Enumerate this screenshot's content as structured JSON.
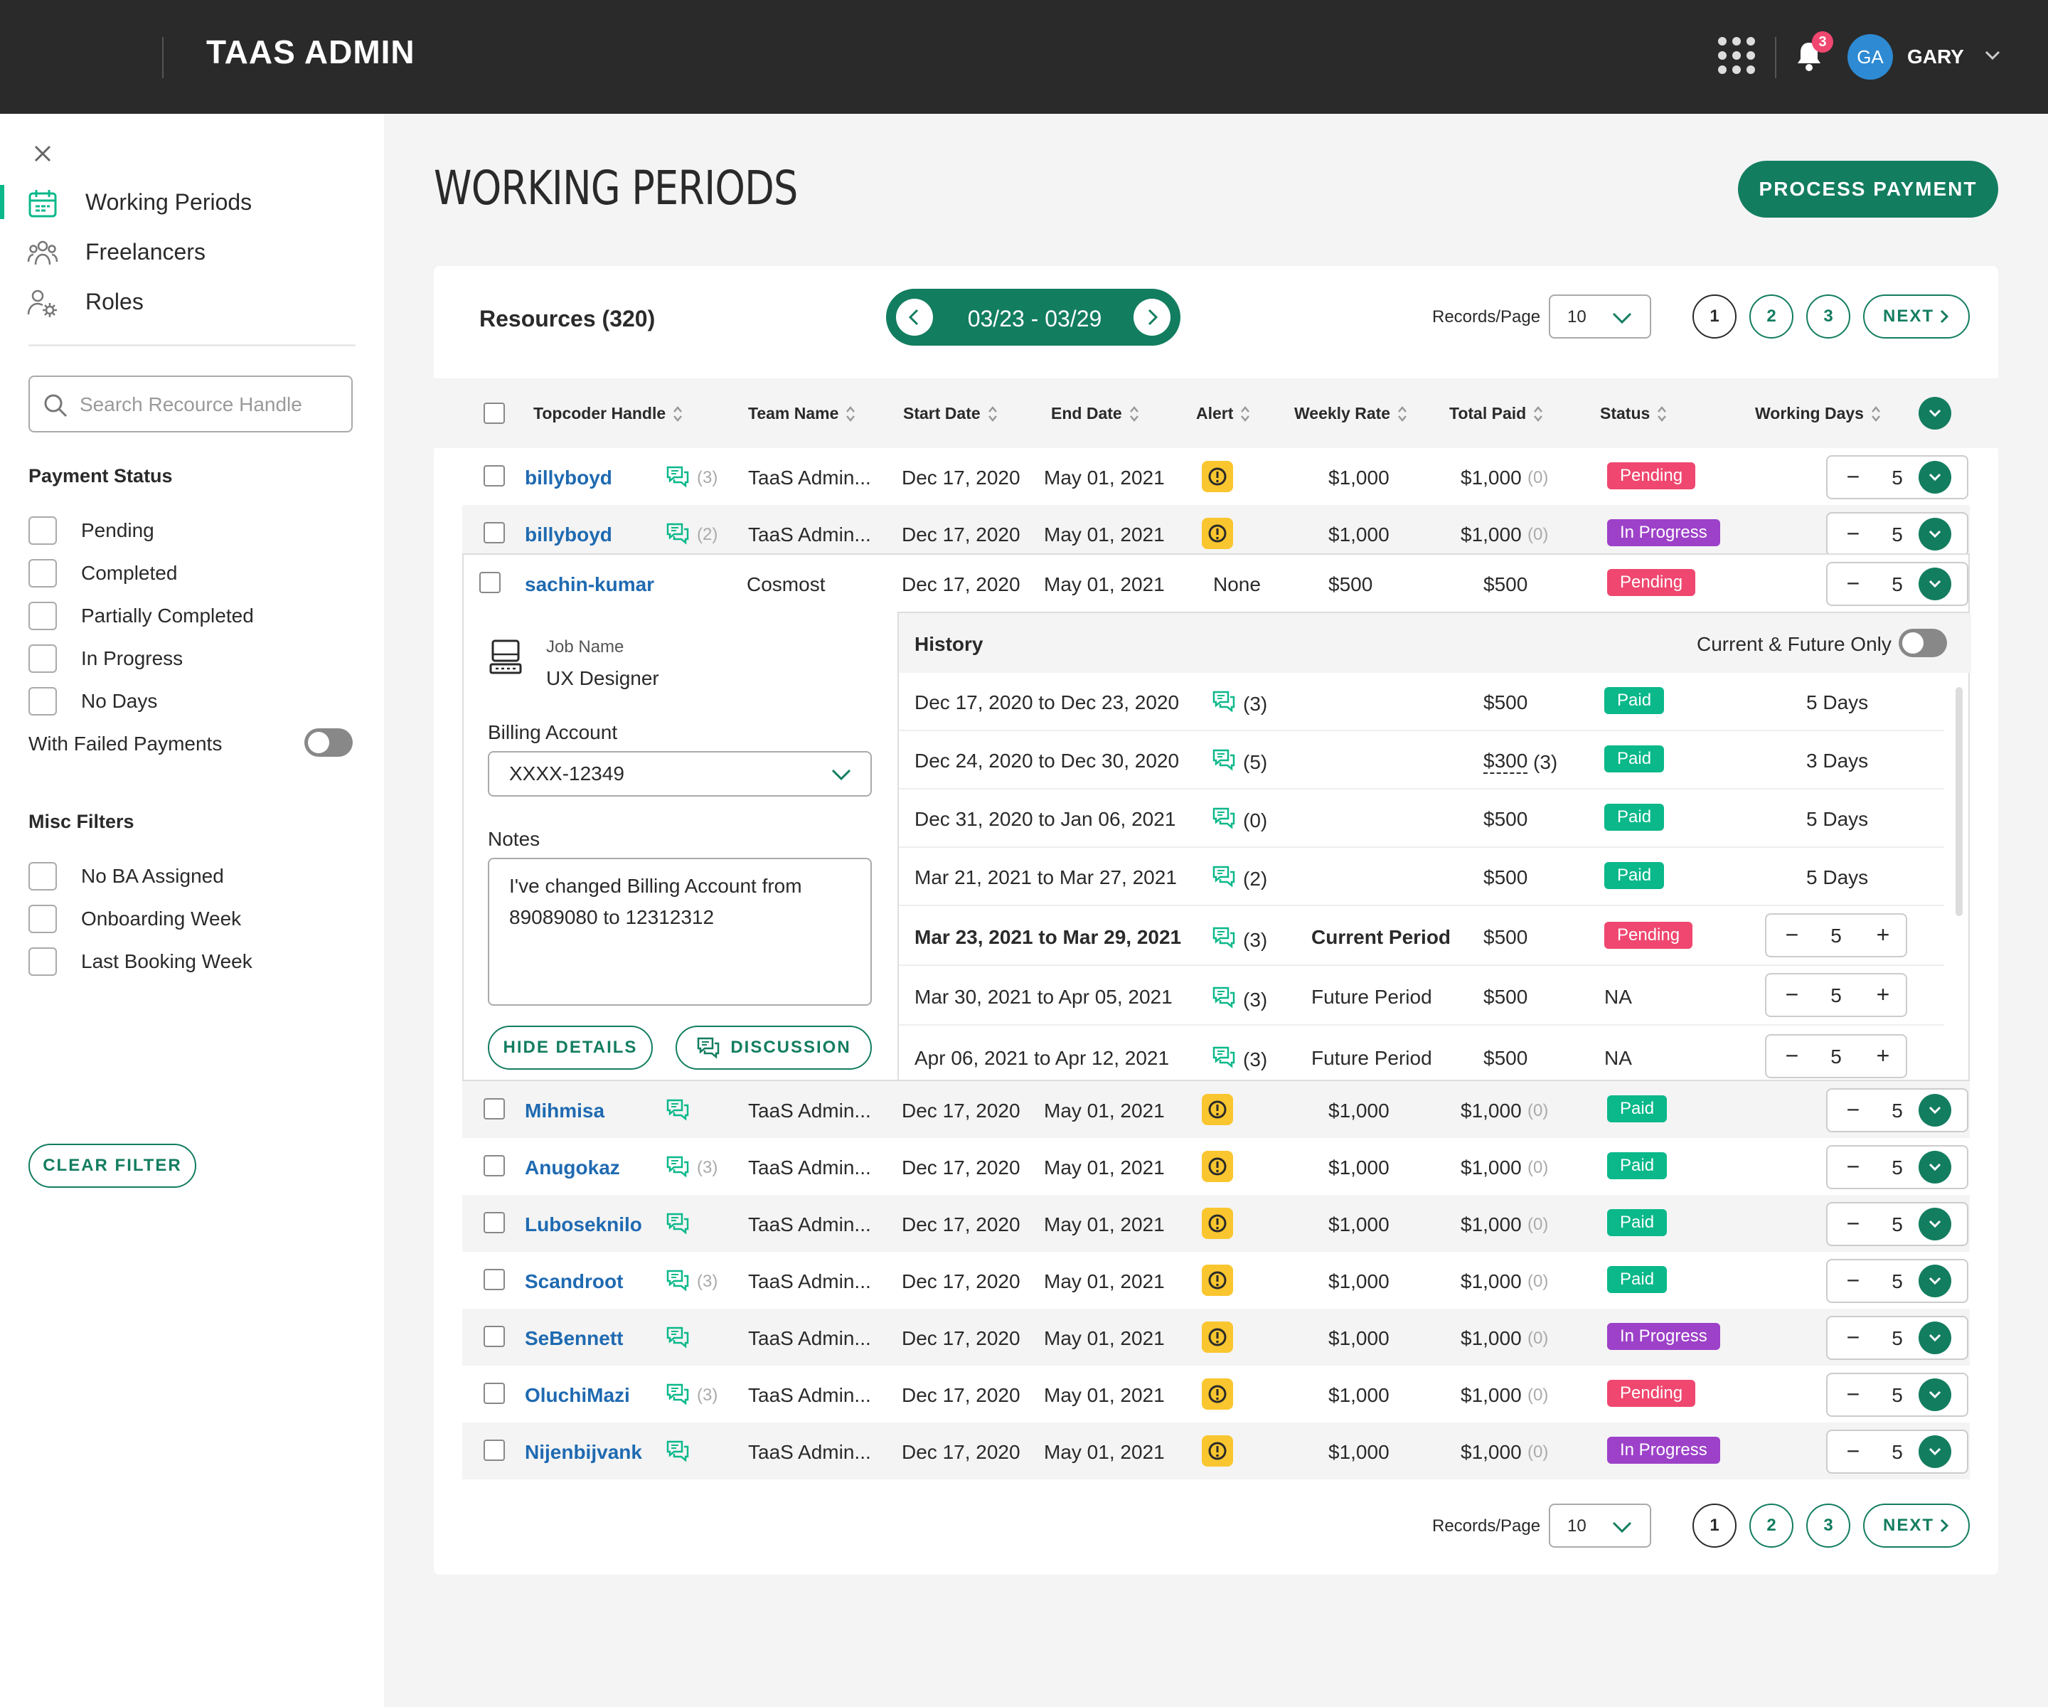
{
  "header": {
    "brand": "TAAS ADMIN",
    "notifications": "3",
    "avatar_initials": "GA",
    "user": "GARY"
  },
  "sidebar": {
    "nav": [
      {
        "label": "Working Periods",
        "icon": "calendar-icon",
        "active": true
      },
      {
        "label": "Freelancers",
        "icon": "people-icon",
        "active": false
      },
      {
        "label": "Roles",
        "icon": "user-gear-icon",
        "active": false
      }
    ],
    "search_placeholder": "Search Recource Handle",
    "payment_status_title": "Payment Status",
    "payment_status": [
      "Pending",
      "Completed",
      "Partially Completed",
      "In Progress",
      "No Days"
    ],
    "failed_payments_label": "With Failed Payments",
    "misc_title": "Misc Filters",
    "misc": [
      "No BA Assigned",
      "Onboarding Week",
      "Last Booking Week"
    ],
    "clear_filter": "CLEAR FILTER"
  },
  "page": {
    "title": "WORKING PERIODS",
    "process_payment": "PROCESS PAYMENT"
  },
  "panel": {
    "resources_title": "Resources (320)",
    "date_range": "03/23 - 03/29",
    "records_page_label": "Records/Page",
    "records_page_value": "10",
    "pages": [
      "1",
      "2",
      "3"
    ],
    "next_label": "NEXT"
  },
  "table": {
    "columns": [
      "Topcoder Handle",
      "Team Name",
      "Start Date",
      "End Date",
      "Alert",
      "Weekly Rate",
      "Total Paid",
      "Status",
      "Working Days"
    ],
    "rows": [
      {
        "handle": "billyboyd",
        "msgs": "(3)",
        "team": "TaaS Admin...",
        "start": "Dec 17, 2020",
        "end": "May 01, 2021",
        "alert": "!",
        "rate": "$1,000",
        "paid": "$1,000",
        "paid_count": "(0)",
        "status": "Pending",
        "days": "5"
      },
      {
        "handle": "billyboyd",
        "msgs": "(2)",
        "team": "TaaS Admin...",
        "start": "Dec 17, 2020",
        "end": "May 01, 2021",
        "alert": "!",
        "rate": "$1,000",
        "paid": "$1,000",
        "paid_count": "(0)",
        "status": "In Progress",
        "days": "5"
      },
      {
        "handle": "sachin-kumar",
        "msgs": "",
        "team": "Cosmost",
        "start": "Dec 17, 2020",
        "end": "May 01, 2021",
        "alert": "None",
        "rate": "$500",
        "paid": "$500",
        "paid_count": "",
        "status": "Pending",
        "days": "5"
      },
      {
        "handle": "Mihmisa",
        "msgs": "",
        "team": "TaaS Admin...",
        "start": "Dec 17, 2020",
        "end": "May 01, 2021",
        "alert": "!",
        "rate": "$1,000",
        "paid": "$1,000",
        "paid_count": "(0)",
        "status": "Paid",
        "days": "5"
      },
      {
        "handle": "Anugokaz",
        "msgs": "(3)",
        "team": "TaaS Admin...",
        "start": "Dec 17, 2020",
        "end": "May 01, 2021",
        "alert": "!",
        "rate": "$1,000",
        "paid": "$1,000",
        "paid_count": "(0)",
        "status": "Paid",
        "days": "5"
      },
      {
        "handle": "Luboseknilo",
        "msgs": "",
        "team": "TaaS Admin...",
        "start": "Dec 17, 2020",
        "end": "May 01, 2021",
        "alert": "!",
        "rate": "$1,000",
        "paid": "$1,000",
        "paid_count": "(0)",
        "status": "Paid",
        "days": "5"
      },
      {
        "handle": "Scandroot",
        "msgs": "(3)",
        "team": "TaaS Admin...",
        "start": "Dec 17, 2020",
        "end": "May 01, 2021",
        "alert": "!",
        "rate": "$1,000",
        "paid": "$1,000",
        "paid_count": "(0)",
        "status": "Paid",
        "days": "5"
      },
      {
        "handle": "SeBennett",
        "msgs": "",
        "team": "TaaS Admin...",
        "start": "Dec 17, 2020",
        "end": "May 01, 2021",
        "alert": "!",
        "rate": "$1,000",
        "paid": "$1,000",
        "paid_count": "(0)",
        "status": "In Progress",
        "days": "5"
      },
      {
        "handle": "OluchiMazi",
        "msgs": "(3)",
        "team": "TaaS Admin...",
        "start": "Dec 17, 2020",
        "end": "May 01, 2021",
        "alert": "!",
        "rate": "$1,000",
        "paid": "$1,000",
        "paid_count": "(0)",
        "status": "Pending",
        "days": "5"
      },
      {
        "handle": "Nijenbijvank",
        "msgs": "",
        "team": "TaaS Admin...",
        "start": "Dec 17, 2020",
        "end": "May 01, 2021",
        "alert": "!",
        "rate": "$1,000",
        "paid": "$1,000",
        "paid_count": "(0)",
        "status": "In Progress",
        "days": "5"
      }
    ]
  },
  "details": {
    "job_name_label": "Job Name",
    "job_name": "UX Designer",
    "billing_label": "Billing Account",
    "billing_value": "XXXX-12349",
    "notes_label": "Notes",
    "notes": "I've changed Billing Account from 89089080 to 12312312",
    "hide_details": "HIDE DETAILS",
    "discussion": "DISCUSSION",
    "history_title": "History",
    "current_future_label": "Current & Future Only",
    "history": [
      {
        "period": "Dec 17, 2020 to Dec 23, 2020",
        "msgs": "(3)",
        "note": "",
        "amount": "$500",
        "amount_count": "",
        "status": "Paid",
        "days": "5 Days",
        "bold": false
      },
      {
        "period": "Dec 24, 2020 to Dec 30, 2020",
        "msgs": "(5)",
        "note": "",
        "amount": "$300",
        "amount_count": "(3)",
        "status": "Paid",
        "days": "3 Days",
        "bold": false
      },
      {
        "period": "Dec 31, 2020 to Jan 06, 2021",
        "msgs": "(0)",
        "note": "",
        "amount": "$500",
        "amount_count": "",
        "status": "Paid",
        "days": "5 Days",
        "bold": false
      },
      {
        "period": "Mar 21, 2021 to Mar 27, 2021",
        "msgs": "(2)",
        "note": "",
        "amount": "$500",
        "amount_count": "",
        "status": "Paid",
        "days": "5 Days",
        "bold": false
      },
      {
        "period": "Mar 23, 2021 to Mar 29, 2021",
        "msgs": "(3)",
        "note": "Current Period",
        "amount": "$500",
        "amount_count": "",
        "status": "Pending",
        "days": "5",
        "bold": true
      },
      {
        "period": "Mar 30, 2021 to Apr 05, 2021",
        "msgs": "(3)",
        "note": "Future Period",
        "amount": "$500",
        "amount_count": "",
        "status": "NA",
        "days": "5",
        "bold": false
      },
      {
        "period": "Apr 06, 2021 to Apr 12, 2021",
        "msgs": "(3)",
        "note": "Future Period",
        "amount": "$500",
        "amount_count": "",
        "status": "NA",
        "days": "5",
        "bold": false
      }
    ]
  },
  "colors": {
    "accent": "#137d60",
    "pending": "#ef476f",
    "in_progress": "#9d41c9",
    "paid": "#0ab88a",
    "alert": "#f9c62f",
    "handle": "#1f6ab1"
  }
}
